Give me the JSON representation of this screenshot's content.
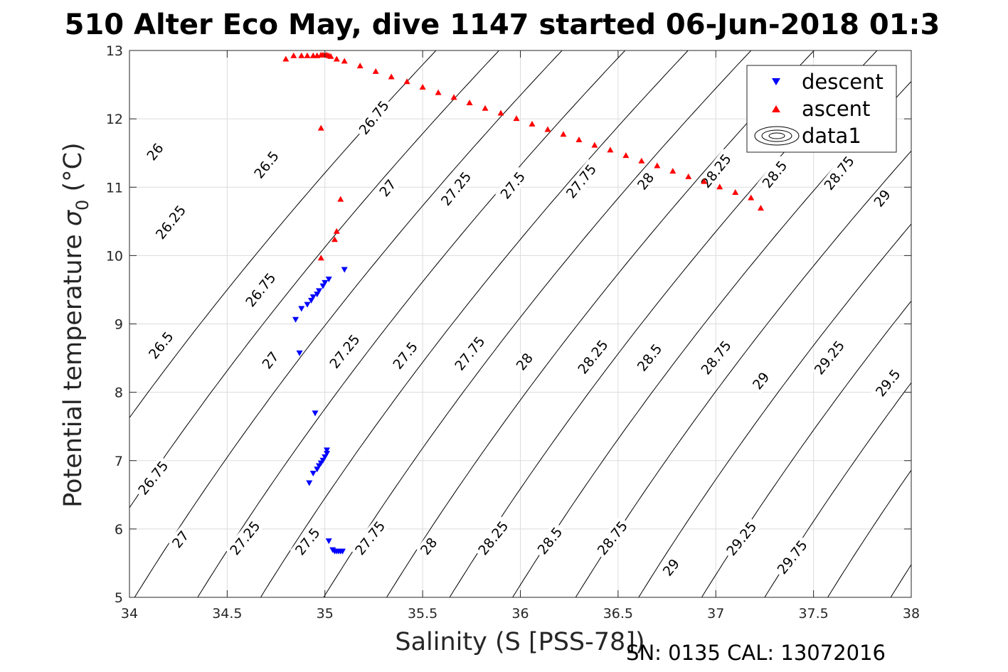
{
  "chart_data": {
    "type": "scatter",
    "title": "510 Alter Eco May, dive 1147 started 06-Jun-2018 01:3",
    "xlabel": "Salinity (S [PSS-78])",
    "ylabel_main": "Potential temperature ",
    "ylabel_sigma": "σ",
    "ylabel_sub": "0",
    "ylabel_unit": " (°C)",
    "footer": "SN: 0135  CAL: 13072016",
    "xlim": [
      34,
      38
    ],
    "ylim": [
      5,
      13
    ],
    "x_ticks": [
      34,
      34.5,
      35,
      35.5,
      36,
      36.5,
      37,
      37.5,
      38
    ],
    "x_tick_labels": [
      "34",
      "34.5",
      "35",
      "35.5",
      "36",
      "36.5",
      "37",
      "37.5",
      "38"
    ],
    "y_ticks": [
      5,
      6,
      7,
      8,
      9,
      10,
      11,
      12,
      13
    ],
    "y_tick_labels": [
      "5",
      "6",
      "7",
      "8",
      "9",
      "10",
      "11",
      "12",
      "13"
    ],
    "grid": true,
    "legend_position": "top-right",
    "legend": [
      {
        "label": "descent",
        "marker": "triangle-down",
        "color": "#0000ff"
      },
      {
        "label": "ascent",
        "marker": "triangle-up",
        "color": "#ff0000"
      },
      {
        "label": "data1",
        "marker": "contour",
        "color": "#000000"
      }
    ],
    "series": [
      {
        "name": "descent",
        "marker": "triangle-down",
        "color": "#0000ff",
        "points": [
          [
            35.1,
            9.79
          ],
          [
            35.02,
            9.65
          ],
          [
            35.0,
            9.6
          ],
          [
            34.99,
            9.55
          ],
          [
            34.97,
            9.48
          ],
          [
            34.96,
            9.43
          ],
          [
            34.94,
            9.39
          ],
          [
            34.93,
            9.34
          ],
          [
            34.91,
            9.28
          ],
          [
            34.88,
            9.22
          ],
          [
            34.85,
            9.06
          ],
          [
            34.87,
            8.57
          ],
          [
            34.95,
            7.69
          ],
          [
            35.01,
            7.15
          ],
          [
            35.01,
            7.1
          ],
          [
            35.0,
            7.05
          ],
          [
            34.99,
            7.0
          ],
          [
            34.98,
            6.96
          ],
          [
            34.97,
            6.92
          ],
          [
            34.96,
            6.87
          ],
          [
            34.94,
            6.81
          ],
          [
            34.92,
            6.67
          ],
          [
            35.02,
            5.82
          ],
          [
            35.04,
            5.69
          ],
          [
            35.05,
            5.67
          ],
          [
            35.06,
            5.67
          ],
          [
            35.07,
            5.67
          ],
          [
            35.08,
            5.67
          ],
          [
            35.09,
            5.67
          ]
        ]
      },
      {
        "name": "ascent",
        "marker": "triangle-up",
        "color": "#ff0000",
        "points": [
          [
            34.98,
            11.87
          ],
          [
            35.08,
            10.83
          ],
          [
            35.06,
            10.36
          ],
          [
            35.05,
            10.24
          ],
          [
            34.98,
            9.97
          ],
          [
            34.8,
            12.88
          ],
          [
            34.84,
            12.93
          ],
          [
            34.88,
            12.93
          ],
          [
            34.91,
            12.93
          ],
          [
            34.94,
            12.93
          ],
          [
            34.96,
            12.93
          ],
          [
            34.98,
            12.94
          ],
          [
            34.99,
            12.94
          ],
          [
            35.0,
            12.94
          ],
          [
            35.01,
            12.94
          ],
          [
            35.02,
            12.93
          ],
          [
            35.03,
            12.92
          ],
          [
            35.06,
            12.88
          ],
          [
            35.1,
            12.85
          ],
          [
            35.18,
            12.78
          ],
          [
            35.26,
            12.7
          ],
          [
            35.34,
            12.62
          ],
          [
            35.42,
            12.55
          ],
          [
            35.5,
            12.47
          ],
          [
            35.58,
            12.39
          ],
          [
            35.66,
            12.32
          ],
          [
            35.74,
            12.24
          ],
          [
            35.82,
            12.16
          ],
          [
            35.9,
            12.09
          ],
          [
            35.98,
            12.01
          ],
          [
            36.06,
            11.93
          ],
          [
            36.14,
            11.85
          ],
          [
            36.22,
            11.78
          ],
          [
            36.3,
            11.7
          ],
          [
            36.38,
            11.62
          ],
          [
            36.46,
            11.55
          ],
          [
            36.54,
            11.47
          ],
          [
            36.62,
            11.39
          ],
          [
            36.7,
            11.32
          ],
          [
            36.78,
            11.24
          ],
          [
            36.86,
            11.16
          ],
          [
            36.94,
            11.09
          ],
          [
            37.02,
            11.01
          ],
          [
            37.1,
            10.93
          ],
          [
            37.18,
            10.85
          ],
          [
            37.23,
            10.7
          ]
        ]
      }
    ],
    "contours": {
      "name": "data1",
      "color": "#000000",
      "levels": [
        26,
        26.25,
        26.5,
        26.75,
        27,
        27.25,
        27.5,
        27.75,
        28,
        28.25,
        28.5,
        28.75,
        29,
        29.25,
        29.5,
        29.75,
        30
      ],
      "labels": [
        {
          "text": "26",
          "s": 34.13,
          "t": 11.52
        },
        {
          "text": "26.25",
          "s": 34.21,
          "t": 10.49
        },
        {
          "text": "26.5",
          "s": 34.16,
          "t": 8.69
        },
        {
          "text": "26.75",
          "s": 34.12,
          "t": 6.75
        },
        {
          "text": "27",
          "s": 34.26,
          "t": 5.85
        },
        {
          "text": "26.5",
          "s": 34.7,
          "t": 11.33
        },
        {
          "text": "26.75",
          "s": 34.67,
          "t": 9.5
        },
        {
          "text": "27",
          "s": 34.72,
          "t": 8.47
        },
        {
          "text": "27.25",
          "s": 34.59,
          "t": 5.87
        },
        {
          "text": "26.75",
          "s": 35.25,
          "t": 12.02
        },
        {
          "text": "27.25",
          "s": 35.1,
          "t": 8.6
        },
        {
          "text": "27.5",
          "s": 34.91,
          "t": 5.82
        },
        {
          "text": "27",
          "s": 35.32,
          "t": 10.99
        },
        {
          "text": "27.5",
          "s": 35.41,
          "t": 8.54
        },
        {
          "text": "27.75",
          "s": 35.23,
          "t": 5.87
        },
        {
          "text": "27.25",
          "s": 35.67,
          "t": 10.98
        },
        {
          "text": "27.75",
          "s": 35.74,
          "t": 8.57
        },
        {
          "text": "28",
          "s": 35.53,
          "t": 5.75
        },
        {
          "text": "27.5",
          "s": 35.96,
          "t": 11.03
        },
        {
          "text": "28",
          "s": 36.02,
          "t": 8.45
        },
        {
          "text": "28.25",
          "s": 35.86,
          "t": 5.87
        },
        {
          "text": "27.75",
          "s": 36.31,
          "t": 11.09
        },
        {
          "text": "28.25",
          "s": 36.37,
          "t": 8.52
        },
        {
          "text": "28.5",
          "s": 36.15,
          "t": 5.83
        },
        {
          "text": "28",
          "s": 36.64,
          "t": 11.09
        },
        {
          "text": "28.5",
          "s": 36.66,
          "t": 8.51
        },
        {
          "text": "28.75",
          "s": 36.47,
          "t": 5.87
        },
        {
          "text": "28.25",
          "s": 37.0,
          "t": 11.24
        },
        {
          "text": "28.75",
          "s": 37.0,
          "t": 8.51
        },
        {
          "text": "29",
          "s": 36.77,
          "t": 5.44
        },
        {
          "text": "28.5",
          "s": 37.3,
          "t": 11.19
        },
        {
          "text": "29",
          "s": 37.23,
          "t": 8.17
        },
        {
          "text": "29.25",
          "s": 37.13,
          "t": 5.86
        },
        {
          "text": "28.75",
          "s": 37.63,
          "t": 11.21
        },
        {
          "text": "29.25",
          "s": 37.58,
          "t": 8.51
        },
        {
          "text": "29.75",
          "s": 37.39,
          "t": 5.59
        },
        {
          "text": "29",
          "s": 37.85,
          "t": 10.84
        },
        {
          "text": "29.5",
          "s": 37.88,
          "t": 8.14
        }
      ]
    }
  }
}
